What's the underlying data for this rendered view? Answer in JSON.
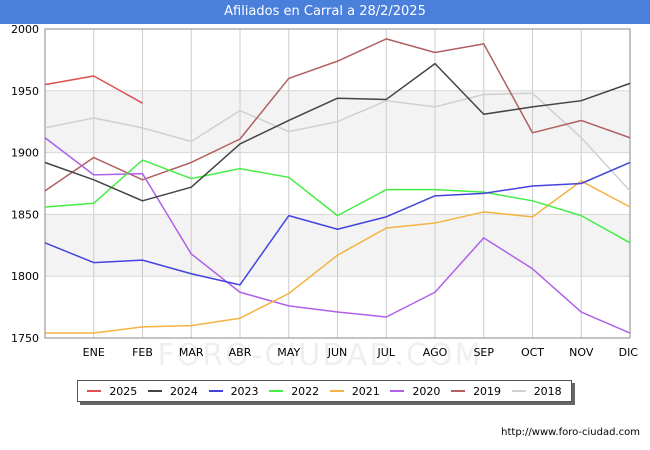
{
  "header": {
    "title": "Afiliados en Carral a 28/2/2025"
  },
  "footer": {
    "source": "http://www.foro-ciudad.com"
  },
  "watermark": "FORO-CIUDAD.COM",
  "chart_data": {
    "type": "line",
    "title": "Afiliados en Carral a 28/2/2025",
    "categories": [
      "",
      "ENE",
      "FEB",
      "MAR",
      "ABR",
      "MAY",
      "JUN",
      "JUL",
      "AGO",
      "SEP",
      "OCT",
      "NOV",
      "DIC"
    ],
    "y_ticks": [
      1750,
      1800,
      1850,
      1900,
      1950,
      2000
    ],
    "ylim": [
      1750,
      2000
    ],
    "grid": true,
    "legend_position": "bottom",
    "series": [
      {
        "name": "2025",
        "color": "#e05050",
        "values": [
          1955,
          1962,
          1940,
          null,
          null,
          null,
          null,
          null,
          null,
          null,
          null,
          null,
          null
        ]
      },
      {
        "name": "2024",
        "color": "#444444",
        "values": [
          1892,
          1878,
          1861,
          1872,
          1907,
          1926,
          1944,
          1943,
          1972,
          1931,
          1937,
          1942,
          1956
        ]
      },
      {
        "name": "2023",
        "color": "#4444dd",
        "values": [
          1827,
          1811,
          1813,
          1802,
          1793,
          1849,
          1838,
          1848,
          1865,
          1867,
          1873,
          1875,
          1892
        ]
      },
      {
        "name": "2022",
        "color": "#44ee44",
        "values": [
          1856,
          1859,
          1894,
          1879,
          1887,
          1880,
          1849,
          1870,
          1870,
          1868,
          1861,
          1849,
          1827
        ]
      },
      {
        "name": "2021",
        "color": "#f5b342",
        "values": [
          1754,
          1754,
          1759,
          1760,
          1766,
          1786,
          1817,
          1839,
          1843,
          1852,
          1848,
          1877,
          1856
        ]
      },
      {
        "name": "2020",
        "color": "#b060e8",
        "values": [
          1912,
          1882,
          1883,
          1818,
          1787,
          1776,
          1771,
          1767,
          1787,
          1831,
          1806,
          1771,
          1754
        ]
      },
      {
        "name": "2019",
        "color": "#b06060",
        "values": [
          1869,
          1896,
          1878,
          1892,
          1911,
          1960,
          1974,
          1992,
          1981,
          1988,
          1916,
          1926,
          1912
        ]
      },
      {
        "name": "2018",
        "color": "#d0d0d0",
        "values": [
          1920,
          1928,
          1920,
          1909,
          1934,
          1917,
          1925,
          1942,
          1937,
          1947,
          1948,
          1912,
          1869
        ]
      }
    ]
  }
}
